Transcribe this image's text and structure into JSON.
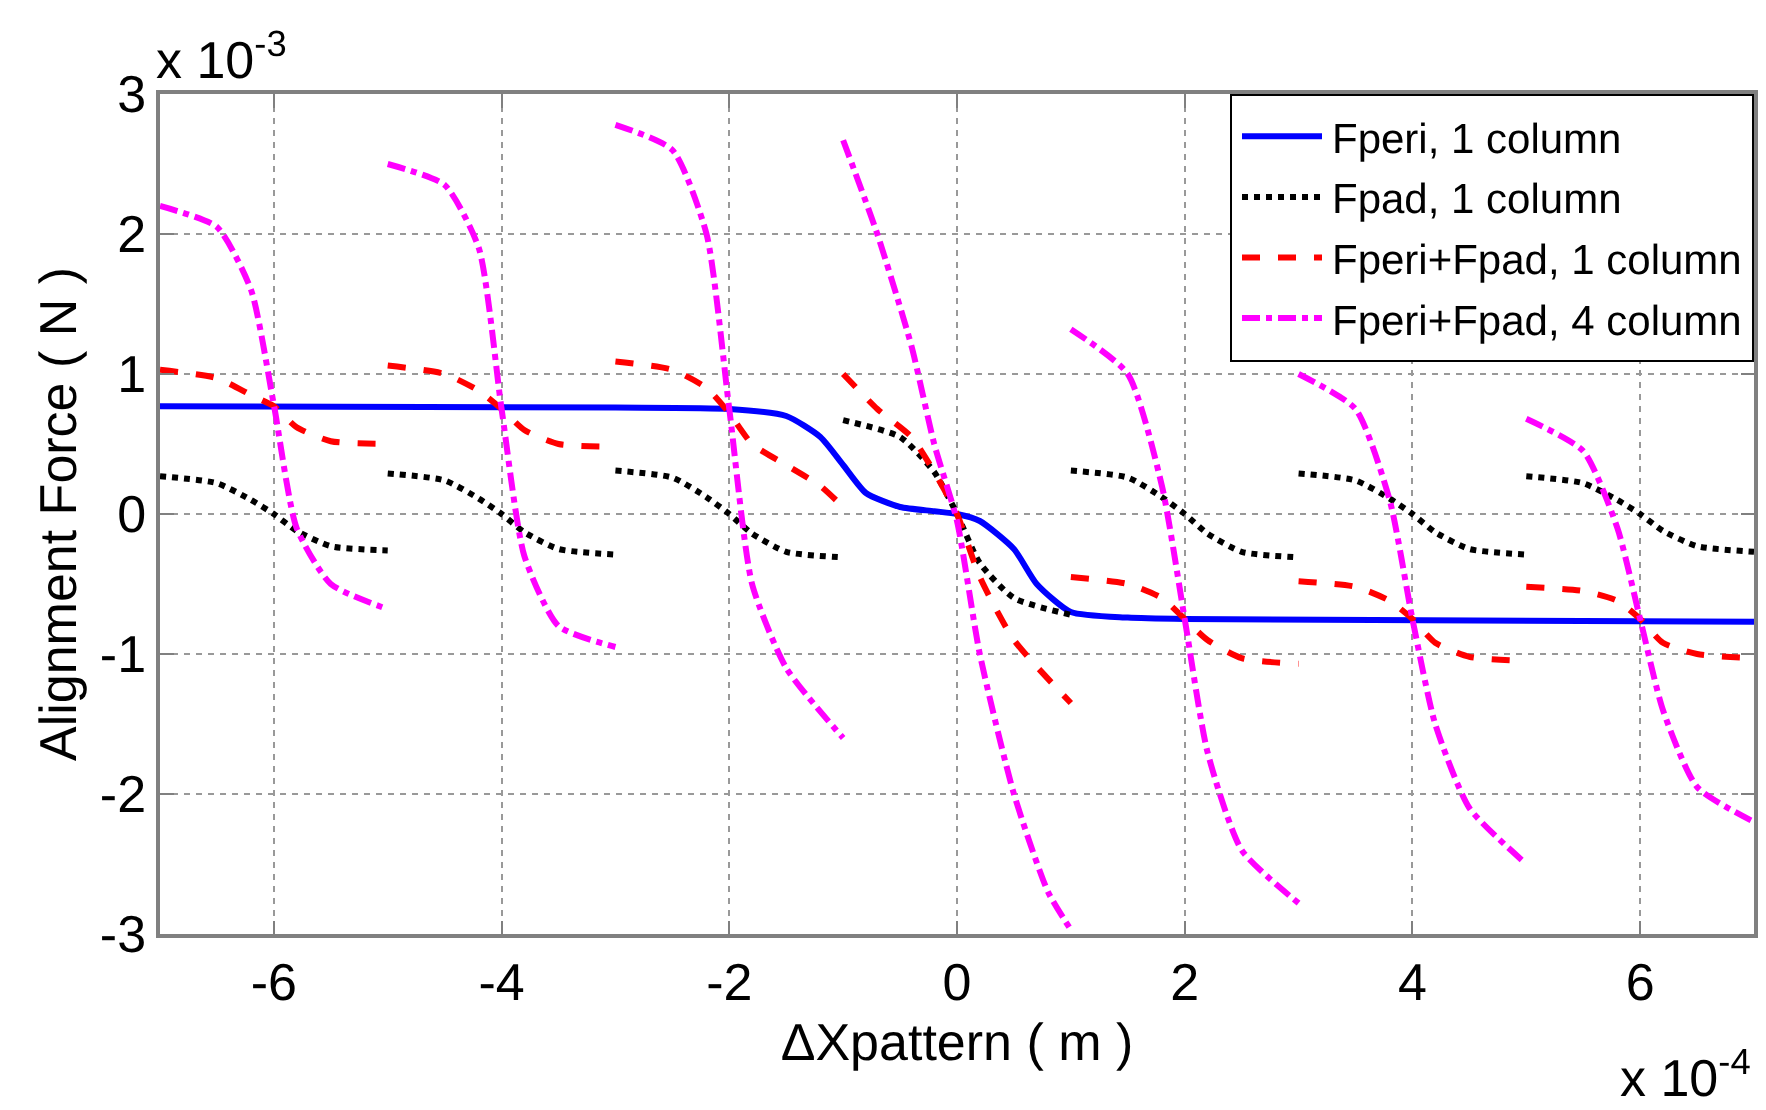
{
  "chart_data": {
    "type": "line",
    "xlabel": "ΔXpattern ( m )",
    "ylabel": "Alignment Force ( N )",
    "xlim": [
      -7,
      7
    ],
    "xticks": [
      -6,
      -4,
      -2,
      0,
      2,
      4,
      6
    ],
    "ylim": [
      -3,
      3
    ],
    "yticks": [
      -3,
      -2,
      -1,
      0,
      1,
      2,
      3
    ],
    "grid": true,
    "legend": "top right",
    "annotations": [
      "x 10$^{-3}$",
      "x 10$^{-4}$"
    ],
    "series": [
      {
        "name": "Fperi, 1 column",
        "color": "#0000ff",
        "line_style": "solid",
        "x": [
          -7,
          -3,
          -2,
          -1.5,
          -1.2,
          -1,
          -0.8,
          -0.5,
          -0.2,
          0,
          0.2,
          0.5,
          0.7,
          1,
          1.5,
          2,
          7
        ],
        "values": [
          0.77,
          0.76,
          0.75,
          0.7,
          0.55,
          0.35,
          0.15,
          0.05,
          0.02,
          0,
          -0.05,
          -0.25,
          -0.5,
          -0.7,
          -0.74,
          -0.75,
          -0.77
        ]
      },
      {
        "name": "Fpad, 1 column",
        "color": "#000000",
        "line_style": "dotted",
        "x": [
          -7,
          -6.5,
          -6.2,
          -6,
          -5.8,
          -5.5,
          -5,
          -5,
          -4.5,
          -4.2,
          -4,
          -3.8,
          -3.5,
          -3,
          -3,
          -2.5,
          -2.2,
          -2,
          -1.8,
          -1.5,
          -1,
          -1,
          -0.5,
          -0.2,
          0,
          0.2,
          0.5,
          1,
          1,
          1.5,
          1.8,
          2,
          2.2,
          2.5,
          3,
          3,
          3.5,
          3.8,
          4,
          4.2,
          4.5,
          5,
          5,
          5.5,
          5.8,
          6,
          6.2,
          6.5,
          7
        ],
        "values": [
          0.27,
          0.22,
          0.1,
          0,
          -0.12,
          -0.23,
          -0.26,
          0.29,
          0.24,
          0.11,
          0,
          -0.13,
          -0.25,
          -0.29,
          0.31,
          0.26,
          0.12,
          0,
          -0.14,
          -0.27,
          -0.31,
          0.67,
          0.55,
          0.3,
          0,
          -0.35,
          -0.6,
          -0.72,
          0.31,
          0.26,
          0.12,
          0,
          -0.14,
          -0.27,
          -0.31,
          0.29,
          0.24,
          0.11,
          0,
          -0.13,
          -0.25,
          -0.29,
          0.27,
          0.22,
          0.1,
          0,
          -0.12,
          -0.23,
          -0.27
        ]
      },
      {
        "name": "Fperi+Fpad, 1 column",
        "color": "#ff0000",
        "line_style": "dashed",
        "x": [
          -7,
          -6.5,
          -6.2,
          -6,
          -5.8,
          -5.5,
          -5,
          -5,
          -4.5,
          -4.2,
          -4,
          -3.8,
          -3.5,
          -3,
          -3,
          -2.5,
          -2.2,
          -2,
          -1.8,
          -1.5,
          -1.2,
          -1,
          -1,
          -0.7,
          -0.4,
          -0.2,
          0,
          0.2,
          0.5,
          1,
          1,
          1.5,
          1.8,
          2,
          2.2,
          2.5,
          3,
          3,
          3.5,
          3.8,
          4,
          4.2,
          4.5,
          5,
          5,
          5.5,
          5.8,
          6,
          6.2,
          6.5,
          7
        ],
        "values": [
          1.03,
          0.97,
          0.85,
          0.77,
          0.62,
          0.52,
          0.5,
          1.06,
          1.0,
          0.88,
          0.75,
          0.6,
          0.5,
          0.48,
          1.09,
          1.03,
          0.9,
          0.72,
          0.5,
          0.35,
          0.2,
          0.05,
          1.0,
          0.75,
          0.55,
          0.3,
          0,
          -0.45,
          -0.9,
          -1.35,
          -0.45,
          -0.5,
          -0.6,
          -0.75,
          -0.9,
          -1.03,
          -1.07,
          -0.48,
          -0.52,
          -0.62,
          -0.75,
          -0.92,
          -1.02,
          -1.05,
          -0.52,
          -0.55,
          -0.62,
          -0.75,
          -0.92,
          -1.0,
          -1.03
        ]
      },
      {
        "name": "Fperi+Fpad, 4 column",
        "color": "#ff00ff",
        "line_style": "dashdot",
        "x": [
          -7,
          -6.5,
          -6.2,
          -6,
          -5.8,
          -5.5,
          -5,
          -5,
          -4.5,
          -4.2,
          -4,
          -3.8,
          -3.5,
          -3,
          -3,
          -2.5,
          -2.2,
          -2,
          -1.8,
          -1.5,
          -1,
          -1,
          -0.7,
          -0.4,
          -0.2,
          0,
          0.2,
          0.5,
          0.8,
          1,
          1,
          1.5,
          1.8,
          2,
          2.2,
          2.5,
          3,
          3,
          3.5,
          3.8,
          4,
          4.2,
          4.5,
          5,
          5,
          5.5,
          5.8,
          6,
          6.2,
          6.5,
          7
        ],
        "values": [
          2.2,
          2.05,
          1.6,
          0.78,
          -0.1,
          -0.5,
          -0.68,
          2.5,
          2.35,
          1.9,
          0.75,
          -0.3,
          -0.8,
          -0.95,
          2.78,
          2.6,
          2.0,
          0.75,
          -0.5,
          -1.1,
          -1.6,
          2.67,
          2.0,
          1.2,
          0.5,
          -0.05,
          -1.0,
          -2.0,
          -2.7,
          -2.97,
          1.32,
          1.0,
          0.2,
          -0.75,
          -1.7,
          -2.4,
          -2.78,
          1.0,
          0.75,
          0.1,
          -0.75,
          -1.5,
          -2.1,
          -2.5,
          0.68,
          0.45,
          -0.1,
          -0.75,
          -1.4,
          -1.95,
          -2.2
        ]
      }
    ]
  }
}
